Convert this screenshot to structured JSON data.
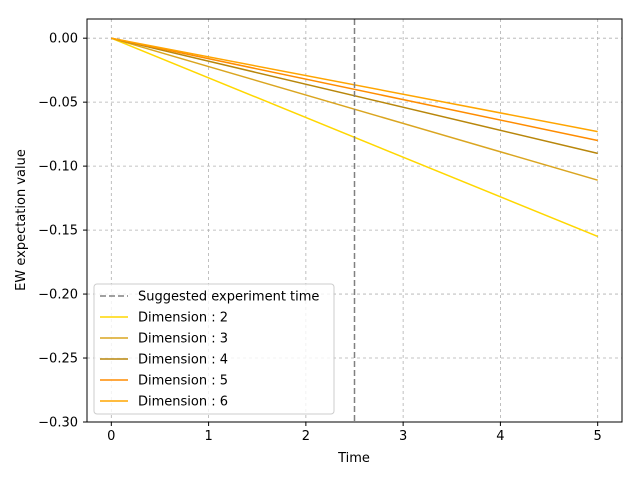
{
  "chart_data": {
    "type": "line",
    "xlabel": "Time",
    "ylabel": "EW expectation value",
    "xlim": [
      -0.25,
      5.25
    ],
    "ylim": [
      -0.3,
      0.015
    ],
    "x_ticks": [
      0,
      1,
      2,
      3,
      4,
      5
    ],
    "y_ticks": [
      0.0,
      -0.05,
      -0.1,
      -0.15,
      -0.2,
      -0.25,
      -0.3
    ],
    "x_tick_labels": [
      "0",
      "1",
      "2",
      "3",
      "4",
      "5"
    ],
    "y_tick_labels": [
      "0.00",
      "−0.05",
      "−0.10",
      "−0.15",
      "−0.20",
      "−0.25",
      "−0.30"
    ],
    "grid": true,
    "legend_position": "lower-left",
    "vline": {
      "name": "Suggested experiment time",
      "x": 2.5,
      "color": "#808080",
      "style": "dashed"
    },
    "series": [
      {
        "name": "Dimension : 2",
        "color": "#FFD700",
        "x": [
          0,
          5
        ],
        "values": [
          0.0,
          -0.155
        ]
      },
      {
        "name": "Dimension : 3",
        "color": "#DAA520",
        "x": [
          0,
          5
        ],
        "values": [
          0.0,
          -0.111
        ]
      },
      {
        "name": "Dimension : 4",
        "color": "#B8860B",
        "x": [
          0,
          5
        ],
        "values": [
          0.0,
          -0.09
        ]
      },
      {
        "name": "Dimension : 5",
        "color": "#FF8C00",
        "x": [
          0,
          5
        ],
        "values": [
          0.0,
          -0.08
        ]
      },
      {
        "name": "Dimension : 6",
        "color": "#FFA500",
        "x": [
          0,
          5
        ],
        "values": [
          0.0,
          -0.073
        ]
      }
    ]
  }
}
